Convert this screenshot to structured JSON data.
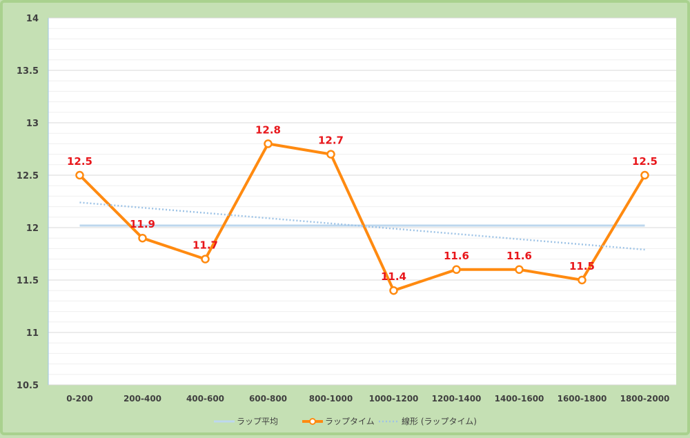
{
  "chart_data": {
    "type": "line",
    "categories": [
      "0-200",
      "200-400",
      "400-600",
      "600-800",
      "800-1000",
      "1000-1200",
      "1200-1400",
      "1400-1600",
      "1600-1800",
      "1800-2000"
    ],
    "ylim": [
      10.5,
      14
    ],
    "yticks": [
      "10.5",
      "11",
      "11.5",
      "12",
      "12.5",
      "13",
      "13.5",
      "14"
    ],
    "grid": true,
    "legend_position": "bottom",
    "series": [
      {
        "name": "ラップ平均",
        "kind": "flat",
        "values": [
          12.02,
          12.02,
          12.02,
          12.02,
          12.02,
          12.02,
          12.02,
          12.02,
          12.02,
          12.02
        ],
        "color": "#bdd7ee"
      },
      {
        "name": "ラップタイム",
        "kind": "main",
        "values": [
          12.5,
          11.9,
          11.7,
          12.8,
          12.7,
          11.4,
          11.6,
          11.6,
          11.5,
          12.5
        ],
        "labels": [
          "12.5",
          "11.9",
          "11.7",
          "12.8",
          "12.7",
          "11.4",
          "11.6",
          "11.6",
          "11.5",
          "12.5"
        ],
        "color": "#ff8a10",
        "label_color": "#e8161b"
      },
      {
        "name": "線形 (ラップタイム)",
        "kind": "trend",
        "values": [
          12.24,
          12.19,
          12.14,
          12.09,
          12.04,
          11.99,
          11.94,
          11.89,
          11.84,
          11.79
        ],
        "color": "#9dc3e6"
      }
    ]
  }
}
